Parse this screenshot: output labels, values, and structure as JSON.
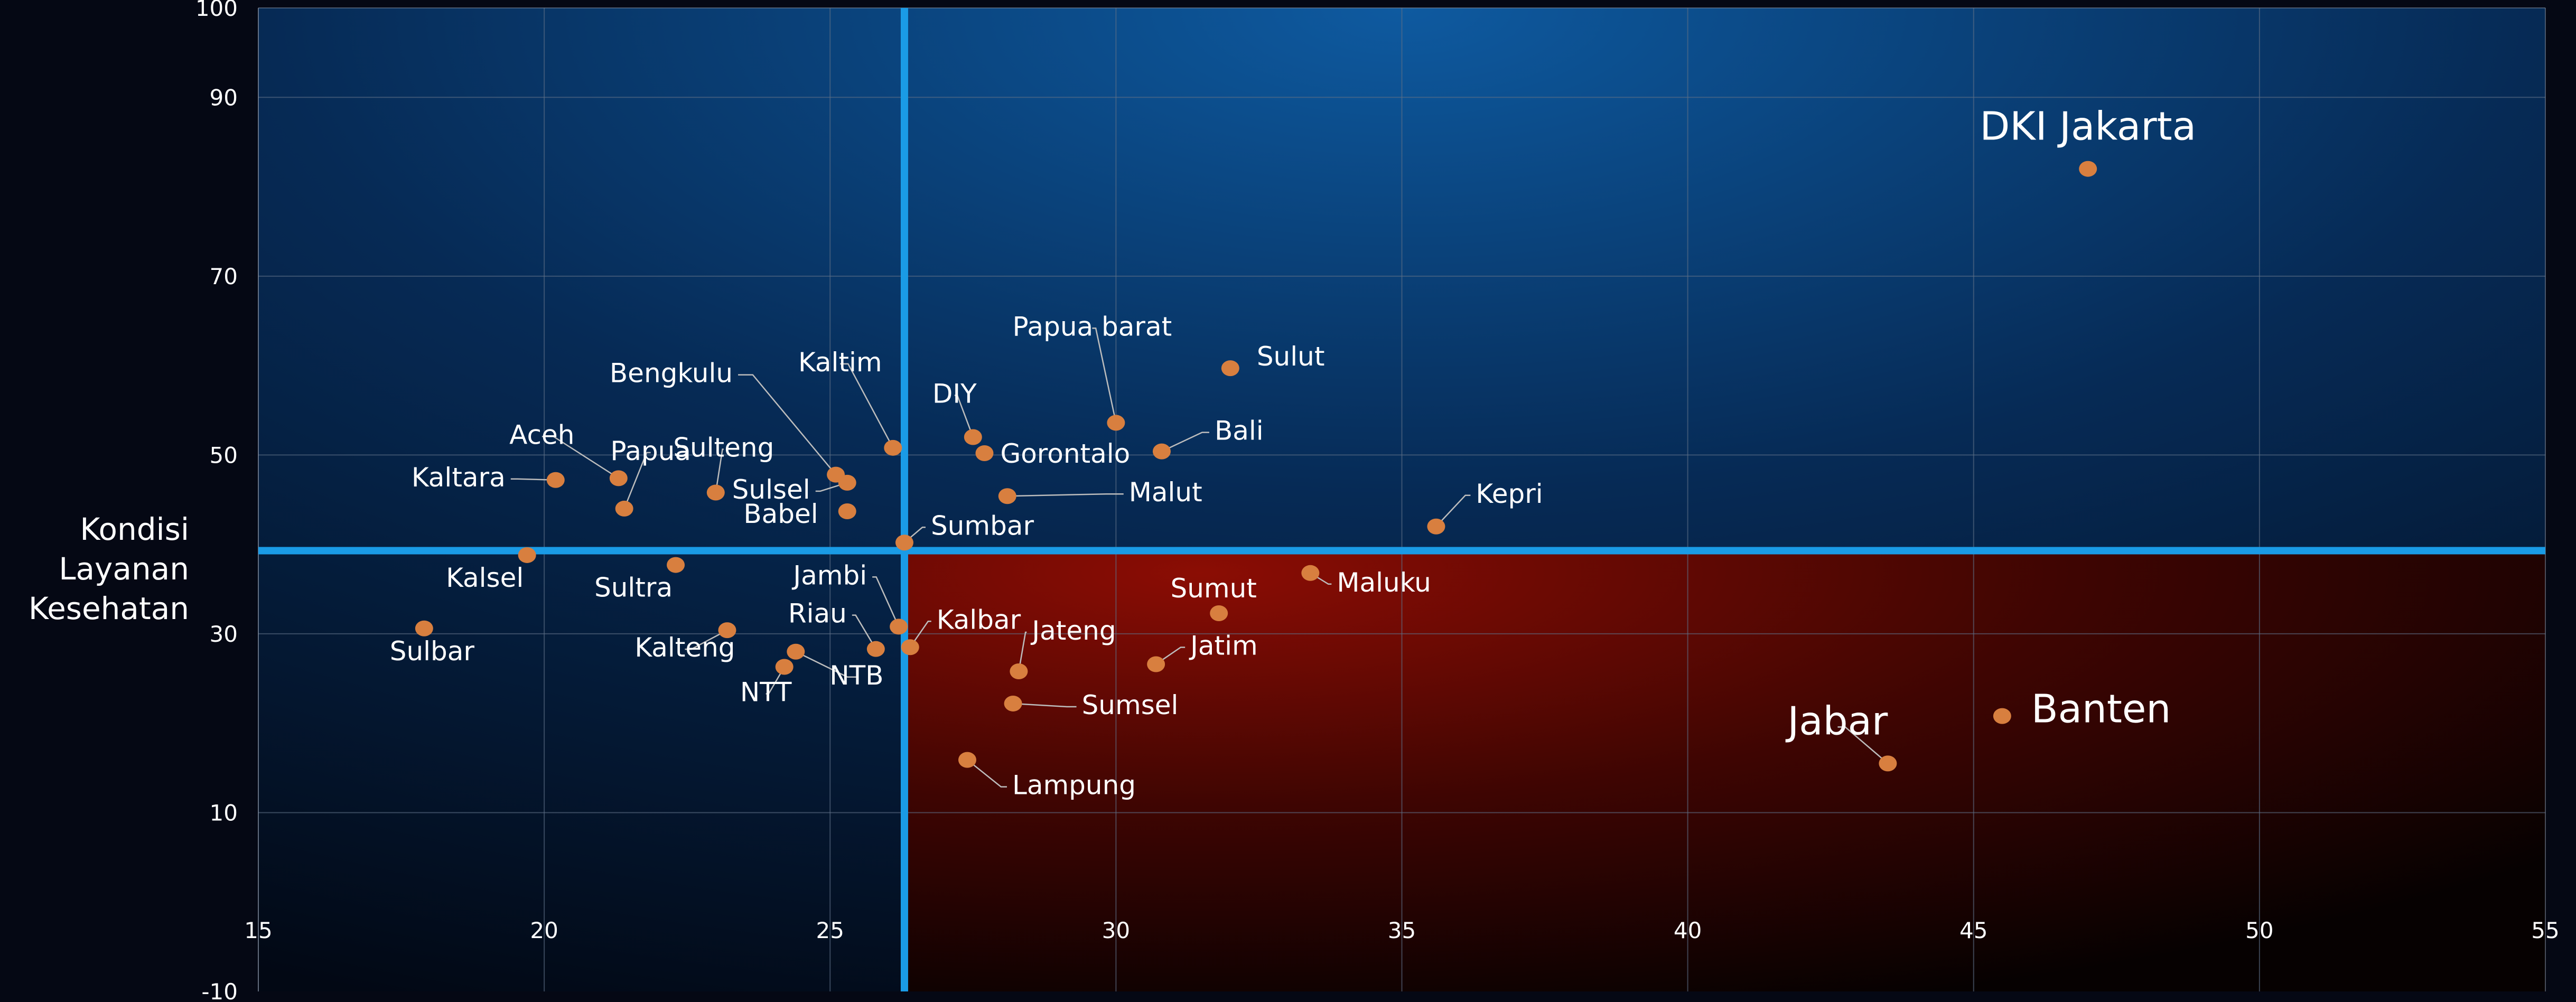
{
  "chart_data": {
    "type": "scatter",
    "title": "",
    "xlabel": "",
    "ylabel_lines": [
      "Kondisi",
      "Layanan",
      "Kesehatan"
    ],
    "xlim": [
      15,
      55
    ],
    "ylim": [
      -10,
      100
    ],
    "x_ticks": [
      15,
      20,
      25,
      30,
      35,
      40,
      45,
      50,
      55
    ],
    "y_ticks": [
      -10,
      10,
      30,
      50,
      70,
      90,
      100
    ],
    "y_gridlines": [
      10,
      30,
      50,
      70,
      90
    ],
    "x_gridlines": [
      20,
      25,
      30,
      35,
      40,
      45,
      50
    ],
    "grid": true,
    "quadrant_lines": {
      "x": 26.3,
      "y": 39.3,
      "color": "#1a9be6"
    },
    "colors": {
      "point": "#d87f3f",
      "leader": "#bdbdbd",
      "quadrant_low_high": "#8b0d04",
      "quadrant_high_low": "#0c5fa8"
    },
    "points": [
      {
        "name": "DKI Jakarta",
        "x": 47.0,
        "y": 82.0
      },
      {
        "name": "Banten",
        "x": 45.5,
        "y": 20.8
      },
      {
        "name": "Jabar",
        "x": 43.5,
        "y": 15.5
      },
      {
        "name": "Kepri",
        "x": 35.6,
        "y": 42.0
      },
      {
        "name": "Sulut",
        "x": 32.0,
        "y": 59.7
      },
      {
        "name": "Maluku",
        "x": 33.4,
        "y": 36.8
      },
      {
        "name": "Sumut",
        "x": 31.8,
        "y": 32.3
      },
      {
        "name": "Jatim",
        "x": 30.7,
        "y": 26.6
      },
      {
        "name": "Bali",
        "x": 30.8,
        "y": 50.4
      },
      {
        "name": "Papua barat",
        "x": 30.0,
        "y": 53.6
      },
      {
        "name": "Malut",
        "x": 28.1,
        "y": 45.4
      },
      {
        "name": "Gorontalo",
        "x": 27.7,
        "y": 50.2
      },
      {
        "name": "DIY",
        "x": 27.5,
        "y": 52.0
      },
      {
        "name": "Jateng",
        "x": 28.3,
        "y": 25.8
      },
      {
        "name": "Sumsel",
        "x": 28.2,
        "y": 22.2
      },
      {
        "name": "Lampung",
        "x": 27.4,
        "y": 15.9
      },
      {
        "name": "Kaltim",
        "x": 26.1,
        "y": 50.8
      },
      {
        "name": "Sumbar",
        "x": 26.3,
        "y": 40.2
      },
      {
        "name": "Kalbar",
        "x": 26.4,
        "y": 28.5
      },
      {
        "name": "Jambi",
        "x": 26.2,
        "y": 30.8
      },
      {
        "name": "Riau",
        "x": 25.8,
        "y": 28.3
      },
      {
        "name": "Bengkulu",
        "x": 25.1,
        "y": 47.8
      },
      {
        "name": "Sulsel",
        "x": 25.3,
        "y": 46.9
      },
      {
        "name": "Babel",
        "x": 25.3,
        "y": 43.7
      },
      {
        "name": "NTB",
        "x": 24.4,
        "y": 28.0
      },
      {
        "name": "NTT",
        "x": 24.2,
        "y": 26.3
      },
      {
        "name": "Kalteng",
        "x": 23.2,
        "y": 30.4
      },
      {
        "name": "Sulteng",
        "x": 23.0,
        "y": 45.8
      },
      {
        "name": "Sultra",
        "x": 22.3,
        "y": 37.7
      },
      {
        "name": "Papua",
        "x": 21.4,
        "y": 44.0
      },
      {
        "name": "Aceh",
        "x": 21.3,
        "y": 47.4
      },
      {
        "name": "Kaltara",
        "x": 20.2,
        "y": 47.2
      },
      {
        "name": "Kalsel",
        "x": 19.7,
        "y": 38.8
      },
      {
        "name": "Sulbar",
        "x": 17.9,
        "y": 30.6
      }
    ]
  }
}
